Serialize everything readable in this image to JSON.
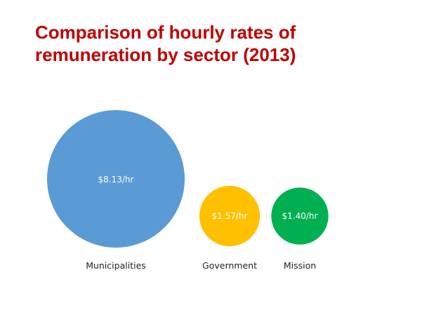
{
  "slide": {
    "title_line1": "Comparison of hourly rates of",
    "title_line2": "remuneration by sector (2013)"
  },
  "colors": {
    "title": "#c00000",
    "municipalities": "#5b9bd5",
    "government": "#ffc000",
    "mission": "#00b050"
  },
  "chart_data": {
    "type": "bubble",
    "title": "Comparison of hourly rates of remuneration by sector (2013)",
    "unit": "$/hr",
    "categories": [
      "Municipalities",
      "Government",
      "Mission"
    ],
    "values": [
      8.13,
      1.57,
      1.4
    ],
    "value_labels": [
      "$8.13/hr",
      "$1.57/hr",
      "$1.40/hr"
    ],
    "colors": [
      "#5b9bd5",
      "#ffc000",
      "#00b050"
    ],
    "legend": "none",
    "grid": false
  }
}
